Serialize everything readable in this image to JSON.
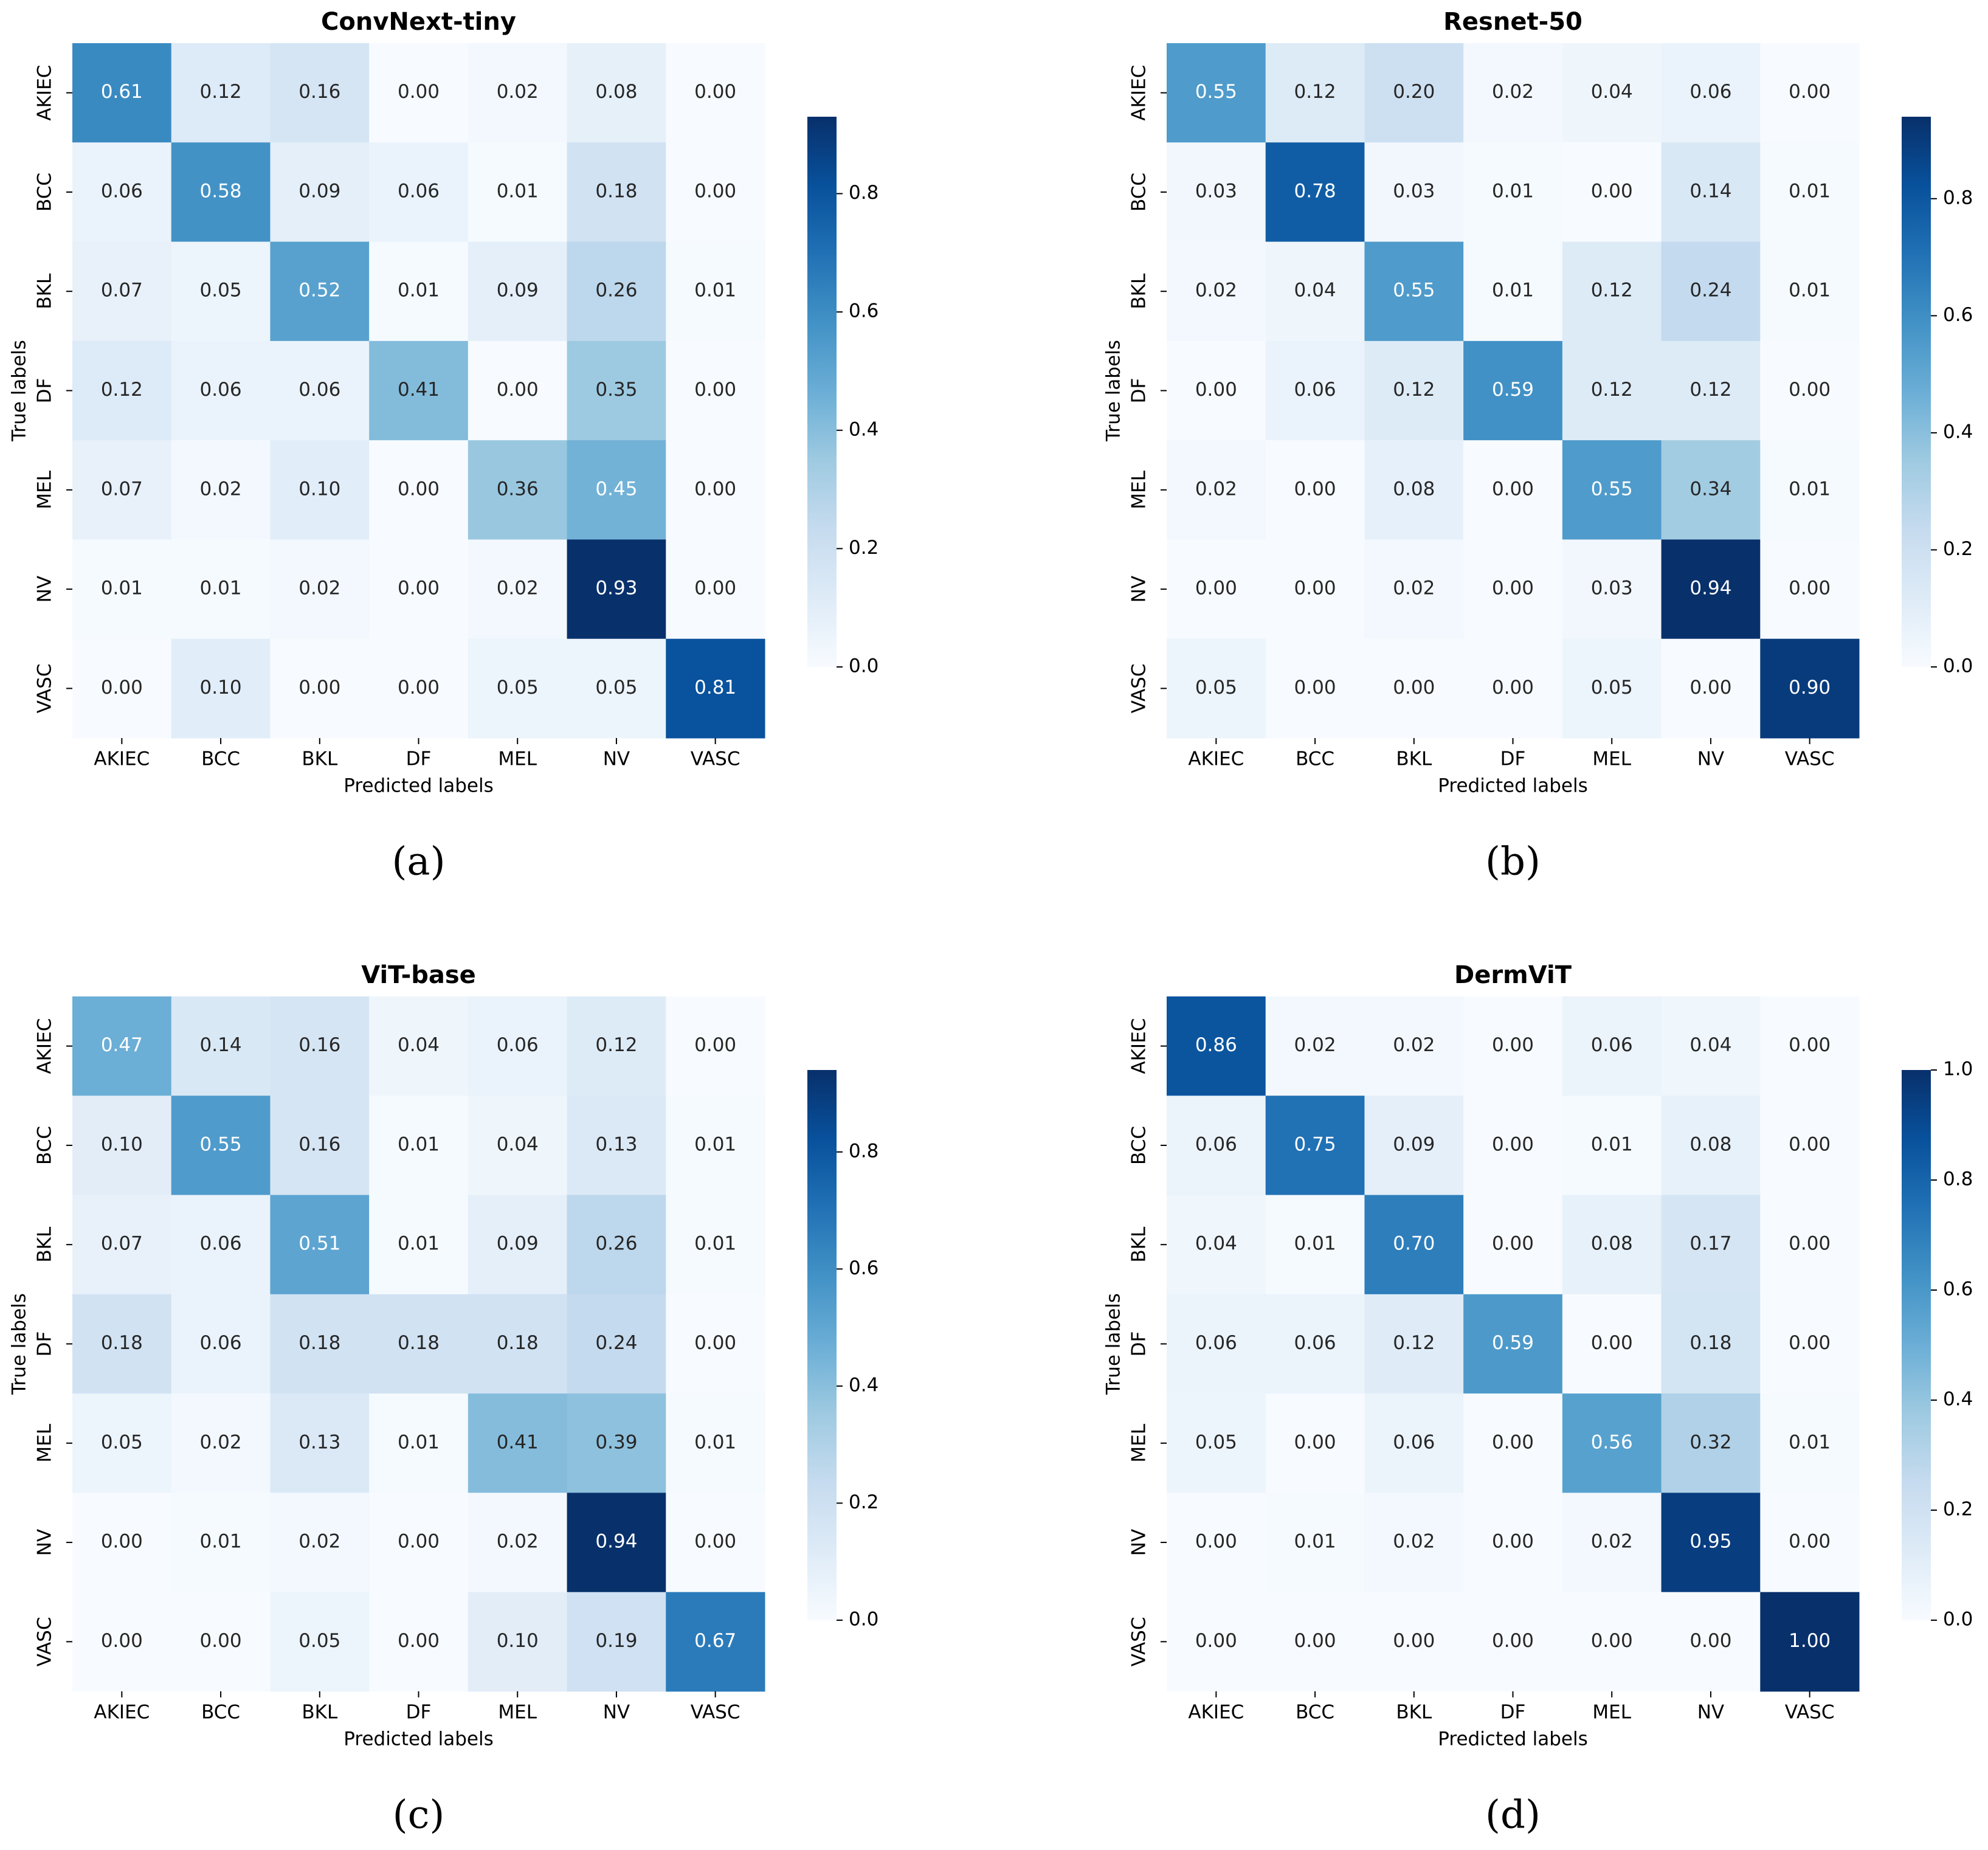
{
  "chart_data": [
    {
      "type": "heatmap",
      "title": "ConvNext-tiny",
      "panel_label": "(a)",
      "xlabel": "Predicted labels",
      "ylabel": "True labels",
      "x_categories": [
        "AKIEC",
        "BCC",
        "BKL",
        "DF",
        "MEL",
        "NV",
        "VASC"
      ],
      "y_categories": [
        "AKIEC",
        "BCC",
        "BKL",
        "DF",
        "MEL",
        "NV",
        "VASC"
      ],
      "colormap": "Blues",
      "values": [
        [
          0.61,
          0.12,
          0.16,
          0,
          0.02,
          0.08,
          0
        ],
        [
          0.06,
          0.58,
          0.09,
          0.06,
          0.01,
          0.18,
          0
        ],
        [
          0.07,
          0.05,
          0.52,
          0.01,
          0.09,
          0.26,
          0.01
        ],
        [
          0.12,
          0.06,
          0.06,
          0.41,
          0,
          0.35,
          0
        ],
        [
          0.07,
          0.02,
          0.1,
          0,
          0.36,
          0.45,
          0
        ],
        [
          0.01,
          0.01,
          0.02,
          0,
          0.02,
          0.93,
          0
        ],
        [
          0,
          0.1,
          0,
          0,
          0.05,
          0.05,
          0.81
        ]
      ],
      "value_labels": [
        [
          "0.61",
          "0.12",
          "0.16",
          "0.00",
          "0.02",
          "0.08",
          "0.00"
        ],
        [
          "0.06",
          "0.58",
          "0.09",
          "0.06",
          "0.01",
          "0.18",
          "0.00"
        ],
        [
          "0.07",
          "0.05",
          "0.52",
          "0.01",
          "0.09",
          "0.26",
          "0.01"
        ],
        [
          "0.12",
          "0.06",
          "0.06",
          "0.41",
          "0.00",
          "0.35",
          "0.00"
        ],
        [
          "0.07",
          "0.02",
          "0.10",
          "0.00",
          "0.36",
          "0.45",
          "0.00"
        ],
        [
          "0.01",
          "0.01",
          "0.02",
          "0.00",
          "0.02",
          "0.93",
          "0.00"
        ],
        [
          "0.00",
          "0.10",
          "0.00",
          "0.00",
          "0.05",
          "0.05",
          "0.81"
        ]
      ],
      "colorbar_lim": [
        0,
        0.93
      ],
      "colorbar_ticks": [
        {
          "value": 0,
          "label": "0.0"
        },
        0.2,
        0.4,
        0.6,
        0.8
      ]
    },
    {
      "type": "heatmap",
      "title": "Resnet-50",
      "panel_label": "(b)",
      "xlabel": "Predicted labels",
      "ylabel": "True labels",
      "x_categories": [
        "AKIEC",
        "BCC",
        "BKL",
        "DF",
        "MEL",
        "NV",
        "VASC"
      ],
      "y_categories": [
        "AKIEC",
        "BCC",
        "BKL",
        "DF",
        "MEL",
        "NV",
        "VASC"
      ],
      "colormap": "Blues",
      "values": [
        [
          0.55,
          0.12,
          0.2,
          0.02,
          0.04,
          0.06,
          0
        ],
        [
          0.03,
          0.78,
          0.03,
          0.01,
          0,
          0.14,
          0.01
        ],
        [
          0.02,
          0.04,
          0.55,
          0.01,
          0.12,
          0.24,
          0.01
        ],
        [
          0,
          0.06,
          0.12,
          0.59,
          0.12,
          0.12,
          0
        ],
        [
          0.02,
          0,
          0.08,
          0,
          0.55,
          0.34,
          0.01
        ],
        [
          0,
          0,
          0.02,
          0,
          0.03,
          0.94,
          0
        ],
        [
          0.05,
          0,
          0,
          0,
          0.05,
          0,
          0.9
        ]
      ],
      "value_labels": [
        [
          "0.55",
          "0.12",
          "0.20",
          "0.02",
          "0.04",
          "0.06",
          "0.00"
        ],
        [
          "0.03",
          "0.78",
          "0.03",
          "0.01",
          "0.00",
          "0.14",
          "0.01"
        ],
        [
          "0.02",
          "0.04",
          "0.55",
          "0.01",
          "0.12",
          "0.24",
          "0.01"
        ],
        [
          "0.00",
          "0.06",
          "0.12",
          "0.59",
          "0.12",
          "0.12",
          "0.00"
        ],
        [
          "0.02",
          "0.00",
          "0.08",
          "0.00",
          "0.55",
          "0.34",
          "0.01"
        ],
        [
          "0.00",
          "0.00",
          "0.02",
          "0.00",
          "0.03",
          "0.94",
          "0.00"
        ],
        [
          "0.05",
          "0.00",
          "0.00",
          "0.00",
          "0.05",
          "0.00",
          "0.90"
        ]
      ],
      "colorbar_lim": [
        0,
        0.94
      ],
      "colorbar_ticks": [
        {
          "value": 0,
          "label": "0.0"
        },
        0.2,
        0.4,
        0.6,
        0.8
      ]
    },
    {
      "type": "heatmap",
      "title": "ViT-base",
      "panel_label": "(c)",
      "xlabel": "Predicted labels",
      "ylabel": "True labels",
      "x_categories": [
        "AKIEC",
        "BCC",
        "BKL",
        "DF",
        "MEL",
        "NV",
        "VASC"
      ],
      "y_categories": [
        "AKIEC",
        "BCC",
        "BKL",
        "DF",
        "MEL",
        "NV",
        "VASC"
      ],
      "colormap": "Blues",
      "values": [
        [
          0.47,
          0.14,
          0.16,
          0.04,
          0.06,
          0.12,
          0
        ],
        [
          0.1,
          0.55,
          0.16,
          0.01,
          0.04,
          0.13,
          0.01
        ],
        [
          0.07,
          0.06,
          0.51,
          0.01,
          0.09,
          0.26,
          0.01
        ],
        [
          0.18,
          0.06,
          0.18,
          0.18,
          0.18,
          0.24,
          0
        ],
        [
          0.05,
          0.02,
          0.13,
          0.01,
          0.41,
          0.39,
          0.01
        ],
        [
          0,
          0.01,
          0.02,
          0,
          0.02,
          0.94,
          0
        ],
        [
          0,
          0,
          0.05,
          0,
          0.1,
          0.19,
          0.67
        ]
      ],
      "value_labels": [
        [
          "0.47",
          "0.14",
          "0.16",
          "0.04",
          "0.06",
          "0.12",
          "0.00"
        ],
        [
          "0.10",
          "0.55",
          "0.16",
          "0.01",
          "0.04",
          "0.13",
          "0.01"
        ],
        [
          "0.07",
          "0.06",
          "0.51",
          "0.01",
          "0.09",
          "0.26",
          "0.01"
        ],
        [
          "0.18",
          "0.06",
          "0.18",
          "0.18",
          "0.18",
          "0.24",
          "0.00"
        ],
        [
          "0.05",
          "0.02",
          "0.13",
          "0.01",
          "0.41",
          "0.39",
          "0.01"
        ],
        [
          "0.00",
          "0.01",
          "0.02",
          "0.00",
          "0.02",
          "0.94",
          "0.00"
        ],
        [
          "0.00",
          "0.00",
          "0.05",
          "0.00",
          "0.10",
          "0.19",
          "0.67"
        ]
      ],
      "colorbar_lim": [
        0,
        0.94
      ],
      "colorbar_ticks": [
        {
          "value": 0,
          "label": "0.0"
        },
        0.2,
        0.4,
        0.6,
        0.8
      ]
    },
    {
      "type": "heatmap",
      "title": "DermViT",
      "panel_label": "(d)",
      "xlabel": "Predicted labels",
      "ylabel": "True labels",
      "x_categories": [
        "AKIEC",
        "BCC",
        "BKL",
        "DF",
        "MEL",
        "NV",
        "VASC"
      ],
      "y_categories": [
        "AKIEC",
        "BCC",
        "BKL",
        "DF",
        "MEL",
        "NV",
        "VASC"
      ],
      "colormap": "Blues",
      "values": [
        [
          0.86,
          0.02,
          0.02,
          0,
          0.06,
          0.04,
          0
        ],
        [
          0.06,
          0.75,
          0.09,
          0,
          0.01,
          0.08,
          0
        ],
        [
          0.04,
          0.01,
          0.7,
          0,
          0.08,
          0.17,
          0
        ],
        [
          0.06,
          0.06,
          0.12,
          0.59,
          0,
          0.18,
          0
        ],
        [
          0.05,
          0,
          0.06,
          0,
          0.56,
          0.32,
          0.01
        ],
        [
          0,
          0.01,
          0.02,
          0,
          0.02,
          0.95,
          0
        ],
        [
          0,
          0,
          0,
          0,
          0,
          0,
          1
        ]
      ],
      "value_labels": [
        [
          "0.86",
          "0.02",
          "0.02",
          "0.00",
          "0.06",
          "0.04",
          "0.00"
        ],
        [
          "0.06",
          "0.75",
          "0.09",
          "0.00",
          "0.01",
          "0.08",
          "0.00"
        ],
        [
          "0.04",
          "0.01",
          "0.70",
          "0.00",
          "0.08",
          "0.17",
          "0.00"
        ],
        [
          "0.06",
          "0.06",
          "0.12",
          "0.59",
          "0.00",
          "0.18",
          "0.00"
        ],
        [
          "0.05",
          "0.00",
          "0.06",
          "0.00",
          "0.56",
          "0.32",
          "0.01"
        ],
        [
          "0.00",
          "0.01",
          "0.02",
          "0.00",
          "0.02",
          "0.95",
          "0.00"
        ],
        [
          "0.00",
          "0.00",
          "0.00",
          "0.00",
          "0.00",
          "0.00",
          "1.00"
        ]
      ],
      "colorbar_lim": [
        0,
        1
      ],
      "colorbar_ticks": [
        {
          "value": 0,
          "label": "0.0"
        },
        0.2,
        0.4,
        0.6,
        0.8,
        {
          "value": 1,
          "label": "1.0"
        }
      ]
    }
  ]
}
